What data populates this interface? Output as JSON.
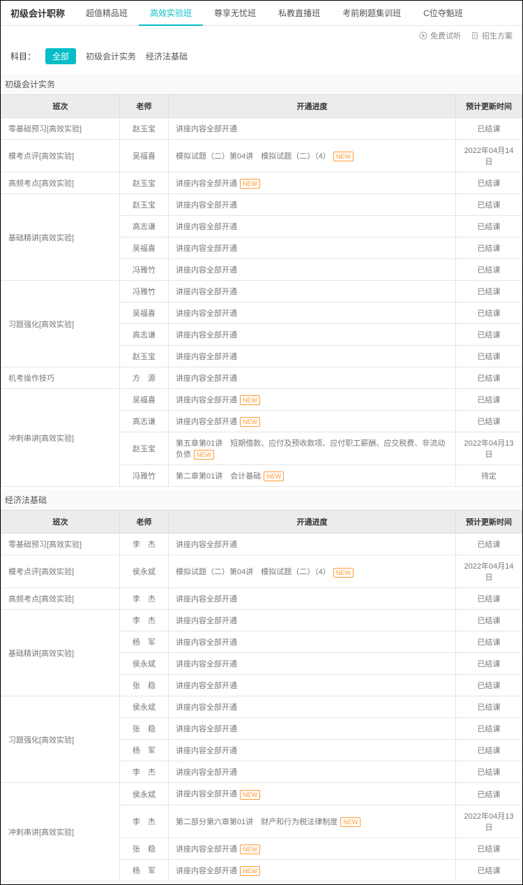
{
  "header": {
    "title": "初级会计职称",
    "tabs": [
      "超值精品班",
      "高效实验班",
      "尊享无忧班",
      "私教直播班",
      "考前刷题集训班",
      "C位夺魁班"
    ],
    "active_index": 1
  },
  "toolbar": {
    "free_trial": "免费试听",
    "enroll_plan": "招生方案"
  },
  "filter": {
    "label": "科目：",
    "selected": "全部",
    "items": [
      "初级会计实务",
      "经济法基础"
    ]
  },
  "new_label": "NEW",
  "columns": {
    "class": "班次",
    "teacher": "老师",
    "progress": "开通进度",
    "time": "预计更新时间"
  },
  "sections": [
    {
      "title": "初级会计实务",
      "rows": [
        {
          "class": "零基础预习[高效实验]",
          "teacher": "赵玉宝",
          "progress": "讲座内容全部开通",
          "new": false,
          "time": "已结课",
          "rowspan": 1
        },
        {
          "class": "模考点评[高效实验]",
          "teacher": "吴福喜",
          "progress": "模拟试题（二）第04讲　模拟试题（二）（4）",
          "new": true,
          "time": "2022年04月14日",
          "rowspan": 1
        },
        {
          "class": "高频考点[高效实验]",
          "teacher": "赵玉宝",
          "progress": "讲座内容全部开通",
          "new": true,
          "time": "已结课",
          "rowspan": 1
        },
        {
          "class": "基础精讲[高效实验]",
          "teacher": "赵玉宝",
          "progress": "讲座内容全部开通",
          "new": false,
          "time": "已结课",
          "rowspan": 4
        },
        {
          "teacher": "高志谦",
          "progress": "讲座内容全部开通",
          "new": false,
          "time": "已结课"
        },
        {
          "teacher": "吴福喜",
          "progress": "讲座内容全部开通",
          "new": false,
          "time": "已结课"
        },
        {
          "teacher": "冯雅竹",
          "progress": "讲座内容全部开通",
          "new": false,
          "time": "已结课"
        },
        {
          "class": "习题强化[高效实验]",
          "teacher": "冯雅竹",
          "progress": "讲座内容全部开通",
          "new": false,
          "time": "已结课",
          "rowspan": 4
        },
        {
          "teacher": "吴福喜",
          "progress": "讲座内容全部开通",
          "new": false,
          "time": "已结课"
        },
        {
          "teacher": "高志谦",
          "progress": "讲座内容全部开通",
          "new": false,
          "time": "已结课"
        },
        {
          "teacher": "赵玉宝",
          "progress": "讲座内容全部开通",
          "new": false,
          "time": "已结课"
        },
        {
          "class": "机考操作技巧",
          "teacher": "方　源",
          "progress": "讲座内容全部开通",
          "new": false,
          "time": "已结课",
          "rowspan": 1
        },
        {
          "class": "冲刺串讲[高效实验]",
          "teacher": "吴福喜",
          "progress": "讲座内容全部开通",
          "new": true,
          "time": "已结课",
          "rowspan": 4
        },
        {
          "teacher": "高志谦",
          "progress": "讲座内容全部开通",
          "new": true,
          "time": "已结课"
        },
        {
          "teacher": "赵玉宝",
          "progress": "第五章第01讲　短期借款、应付及预收款项、应付职工薪酬、应交税费、非流动负债",
          "new": true,
          "time": "2022年04月13日"
        },
        {
          "teacher": "冯雅竹",
          "progress": "第二章第01讲　会计基础",
          "new": true,
          "time": "待定"
        }
      ]
    },
    {
      "title": "经济法基础",
      "rows": [
        {
          "class": "零基础预习[高效实验]",
          "teacher": "李　杰",
          "progress": "讲座内容全部开通",
          "new": false,
          "time": "已结课",
          "rowspan": 1
        },
        {
          "class": "模考点评[高效实验]",
          "teacher": "侯永斌",
          "progress": "模拟试题（二）第04讲　模拟试题（二）（4）",
          "new": true,
          "time": "2022年04月14日",
          "rowspan": 1
        },
        {
          "class": "高频考点[高效实验]",
          "teacher": "李　杰",
          "progress": "讲座内容全部开通",
          "new": false,
          "time": "已结课",
          "rowspan": 1
        },
        {
          "class": "基础精讲[高效实验]",
          "teacher": "李　杰",
          "progress": "讲座内容全部开通",
          "new": false,
          "time": "已结课",
          "rowspan": 4
        },
        {
          "teacher": "杨　军",
          "progress": "讲座内容全部开通",
          "new": false,
          "time": "已结课"
        },
        {
          "teacher": "侯永斌",
          "progress": "讲座内容全部开通",
          "new": false,
          "time": "已结课"
        },
        {
          "teacher": "张　稳",
          "progress": "讲座内容全部开通",
          "new": false,
          "time": "已结课"
        },
        {
          "class": "习题强化[高效实验]",
          "teacher": "侯永斌",
          "progress": "讲座内容全部开通",
          "new": false,
          "time": "已结课",
          "rowspan": 4
        },
        {
          "teacher": "张　稳",
          "progress": "讲座内容全部开通",
          "new": false,
          "time": "已结课"
        },
        {
          "teacher": "杨　军",
          "progress": "讲座内容全部开通",
          "new": false,
          "time": "已结课"
        },
        {
          "teacher": "李　杰",
          "progress": "讲座内容全部开通",
          "new": false,
          "time": "已结课"
        },
        {
          "class": "冲刺串讲[高效实验]",
          "teacher": "侯永斌",
          "progress": "讲座内容全部开通",
          "new": true,
          "time": "已结课",
          "rowspan": 4
        },
        {
          "teacher": "李　杰",
          "progress": "第二部分第六章第01讲　财产和行为税法律制度",
          "new": true,
          "time": "2022年04月13日"
        },
        {
          "teacher": "张　稳",
          "progress": "讲座内容全部开通",
          "new": true,
          "time": "已结课"
        },
        {
          "teacher": "杨　军",
          "progress": "讲座内容全部开通",
          "new": true,
          "time": "已结课"
        }
      ]
    }
  ]
}
